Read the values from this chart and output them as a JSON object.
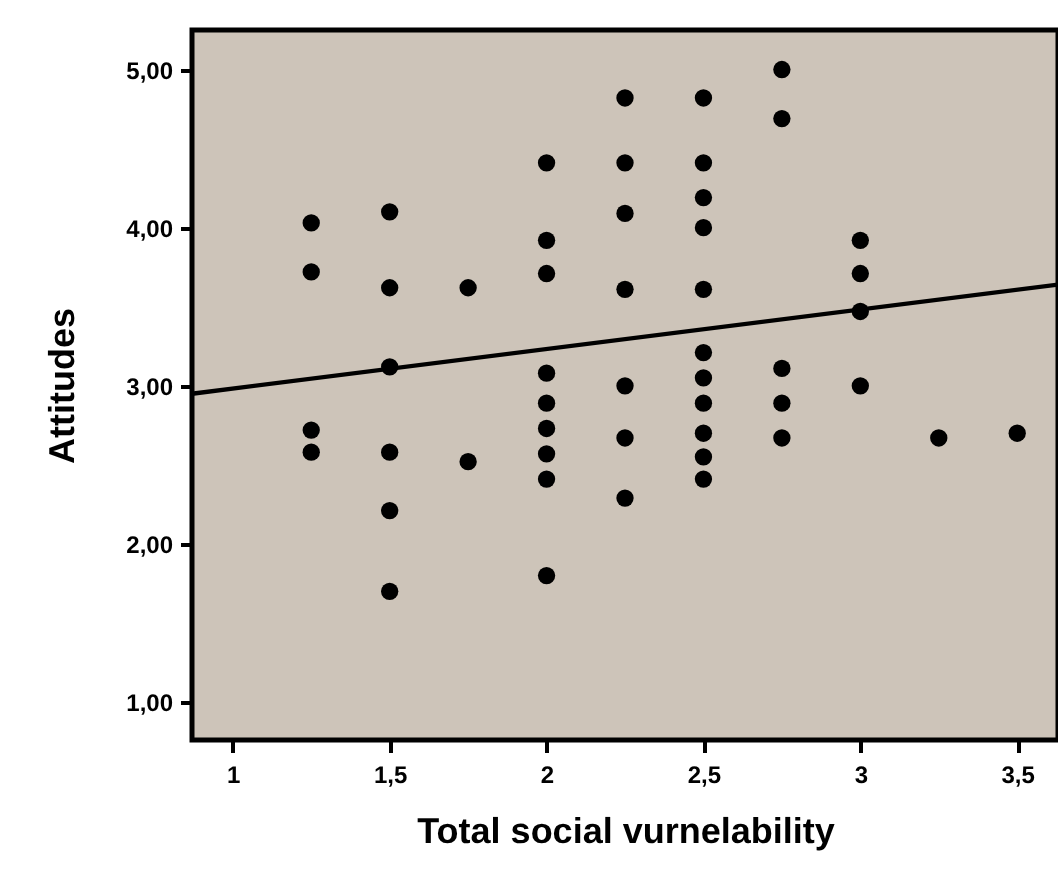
{
  "chart_data": {
    "type": "scatter",
    "xlabel": "Total social vurnelability",
    "ylabel": "Attitudes",
    "xlim": [
      0.87,
      3.63
    ],
    "ylim": [
      0.76,
      5.25
    ],
    "xticks": [
      1,
      {
        "value": 1.5,
        "label": "1,5"
      },
      2,
      {
        "value": 2.5,
        "label": "2,5"
      },
      3,
      {
        "value": 3.5,
        "label": "3,5"
      }
    ],
    "yticks": [
      {
        "value": 1,
        "label": "1,00"
      },
      {
        "value": 2,
        "label": "2,00"
      },
      {
        "value": 3,
        "label": "3,00"
      },
      {
        "value": 4,
        "label": "4,00"
      },
      {
        "value": 5,
        "label": "5,00"
      }
    ],
    "grid": false,
    "series": [
      {
        "marker": "circle",
        "color": "#000000",
        "x": [
          1.25,
          1.25,
          1.25,
          1.25,
          1.5,
          1.5,
          1.5,
          1.5,
          1.5,
          1.5,
          1.75,
          1.75,
          2,
          2,
          2,
          2,
          2,
          2,
          2,
          2,
          2,
          2.25,
          2.25,
          2.25,
          2.25,
          2.25,
          2.25,
          2.25,
          2.5,
          2.5,
          2.5,
          2.5,
          2.5,
          2.5,
          2.5,
          2.5,
          2.5,
          2.5,
          2.5,
          2.75,
          2.75,
          2.75,
          2.75,
          2.75,
          3,
          3,
          3,
          3,
          3.25,
          3.5
        ],
        "values": [
          4.03,
          3.72,
          2.72,
          2.58,
          4.1,
          3.62,
          3.12,
          2.58,
          2.21,
          1.7,
          3.62,
          2.52,
          4.41,
          3.92,
          3.71,
          3.08,
          2.89,
          2.73,
          2.57,
          2.41,
          1.8,
          4.82,
          4.41,
          4.09,
          3.61,
          3.0,
          2.67,
          2.29,
          4.82,
          4.41,
          4.19,
          4.0,
          3.61,
          3.21,
          3.05,
          2.89,
          2.7,
          2.55,
          2.41,
          5.0,
          4.69,
          3.11,
          2.89,
          2.67,
          3.92,
          3.71,
          3.47,
          3.0,
          2.67,
          2.7
        ]
      },
      {
        "type": "line",
        "color": "#000000",
        "x": [
          0.87,
          3.63
        ],
        "values": [
          2.95,
          3.64
        ]
      }
    ]
  }
}
